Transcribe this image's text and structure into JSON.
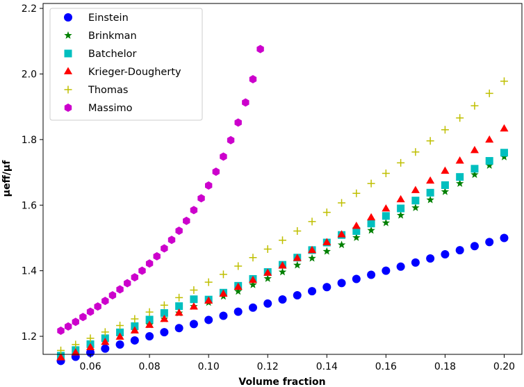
{
  "chart_data": {
    "type": "scatter",
    "title": "",
    "xlabel": "Volume fraction",
    "ylabel": "μeff/μf",
    "xlim": [
      0.044,
      0.206
    ],
    "ylim": [
      1.145,
      2.215
    ],
    "xticks": [
      0.06,
      0.08,
      0.1,
      0.12,
      0.14,
      0.16,
      0.18,
      0.2
    ],
    "xtick_labels": [
      "0.06",
      "0.08",
      "0.10",
      "0.12",
      "0.14",
      "0.16",
      "0.18",
      "0.20"
    ],
    "yticks": [
      1.2,
      1.4,
      1.6,
      1.8,
      2.0,
      2.2
    ],
    "ytick_labels": [
      "1.2",
      "1.4",
      "1.6",
      "1.8",
      "2.0",
      "2.2"
    ],
    "grid": false,
    "legend_position": "top-left",
    "x": [
      0.05,
      0.055,
      0.06,
      0.065,
      0.07,
      0.075,
      0.08,
      0.085,
      0.09,
      0.095,
      0.1,
      0.105,
      0.11,
      0.115,
      0.12,
      0.125,
      0.13,
      0.135,
      0.14,
      0.145,
      0.15,
      0.155,
      0.16,
      0.165,
      0.17,
      0.175,
      0.18,
      0.185,
      0.19,
      0.195,
      0.2
    ],
    "series": [
      {
        "name": "Einstein",
        "marker": "circle",
        "color": "#0000ff",
        "values": [
          1.125,
          1.1375,
          1.15,
          1.1625,
          1.175,
          1.1875,
          1.2,
          1.2125,
          1.225,
          1.2375,
          1.25,
          1.2625,
          1.275,
          1.2875,
          1.3,
          1.3125,
          1.325,
          1.3375,
          1.35,
          1.3625,
          1.375,
          1.3875,
          1.4,
          1.4125,
          1.425,
          1.4375,
          1.45,
          1.4625,
          1.475,
          1.4875,
          1.5
        ]
      },
      {
        "name": "Brinkman",
        "marker": "star",
        "color": "#008000",
        "values": [
          1.137,
          1.152,
          1.168,
          1.184,
          1.2,
          1.218,
          1.235,
          1.253,
          1.271,
          1.291,
          1.303,
          1.322,
          1.337,
          1.357,
          1.376,
          1.396,
          1.417,
          1.438,
          1.459,
          1.479,
          1.501,
          1.523,
          1.546,
          1.569,
          1.592,
          1.616,
          1.641,
          1.666,
          1.693,
          1.721,
          1.747
        ]
      },
      {
        "name": "Batchelor",
        "marker": "square",
        "color": "#00bfbf",
        "values": [
          1.141,
          1.158,
          1.176,
          1.194,
          1.212,
          1.231,
          1.251,
          1.271,
          1.292,
          1.313,
          1.312,
          1.333,
          1.354,
          1.375,
          1.396,
          1.418,
          1.44,
          1.463,
          1.486,
          1.509,
          1.521,
          1.544,
          1.567,
          1.59,
          1.614,
          1.638,
          1.661,
          1.686,
          1.711,
          1.735,
          1.76
        ]
      },
      {
        "name": "Krieger-Dougherty",
        "marker": "triangle",
        "color": "#ff0000",
        "values": [
          1.135,
          1.15,
          1.166,
          1.182,
          1.198,
          1.217,
          1.234,
          1.252,
          1.271,
          1.29,
          1.308,
          1.329,
          1.35,
          1.371,
          1.393,
          1.415,
          1.438,
          1.462,
          1.486,
          1.51,
          1.536,
          1.562,
          1.589,
          1.617,
          1.645,
          1.674,
          1.704,
          1.735,
          1.767,
          1.799,
          1.833
        ]
      },
      {
        "name": "Thomas",
        "marker": "plus",
        "color": "#bfbf00",
        "values": [
          1.157,
          1.175,
          1.194,
          1.213,
          1.233,
          1.253,
          1.274,
          1.295,
          1.318,
          1.341,
          1.365,
          1.389,
          1.414,
          1.44,
          1.466,
          1.493,
          1.521,
          1.55,
          1.578,
          1.607,
          1.636,
          1.666,
          1.697,
          1.729,
          1.762,
          1.796,
          1.83,
          1.866,
          1.903,
          1.941,
          1.978
        ]
      },
      {
        "name": "Massimo",
        "marker": "hexagon",
        "color": "#cc00cc",
        "x": [
          0.05,
          0.0525,
          0.055,
          0.0575,
          0.06,
          0.0625,
          0.065,
          0.0675,
          0.07,
          0.0725,
          0.075,
          0.0775,
          0.08,
          0.0825,
          0.085,
          0.0875,
          0.09,
          0.0925,
          0.095,
          0.0975,
          0.1,
          0.1025,
          0.105,
          0.1075,
          0.11,
          0.1125,
          0.115,
          0.1175
        ],
        "values": [
          1.217,
          1.23,
          1.244,
          1.259,
          1.275,
          1.291,
          1.308,
          1.325,
          1.343,
          1.362,
          1.38,
          1.4,
          1.422,
          1.444,
          1.468,
          1.494,
          1.522,
          1.552,
          1.585,
          1.621,
          1.66,
          1.702,
          1.748,
          1.798,
          1.852,
          1.913,
          1.984,
          2.076
        ]
      }
    ]
  }
}
